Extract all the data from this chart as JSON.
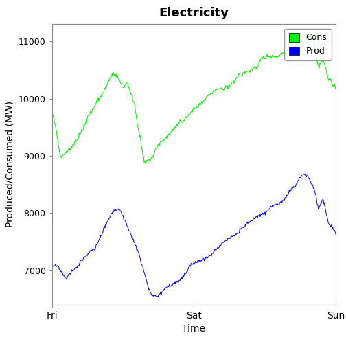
{
  "title": "Electricity",
  "xlabel": "Time",
  "ylabel": "Produced/Consumed (MW)",
  "xtick_labels": [
    "Fri",
    "Sat",
    "Sun"
  ],
  "ylim": [
    6400,
    11300
  ],
  "yticks": [
    7000,
    8000,
    9000,
    10000,
    11000
  ],
  "legend": [
    {
      "label": "Cons",
      "color": "#00EE00"
    },
    {
      "label": "Prod",
      "color": "#0000EE"
    }
  ],
  "background_color": "#FFFFFF",
  "plot_bg_color": "#FFFFFF",
  "title_fontsize": 13,
  "title_fontweight": "bold",
  "axis_label_fontsize": 10
}
